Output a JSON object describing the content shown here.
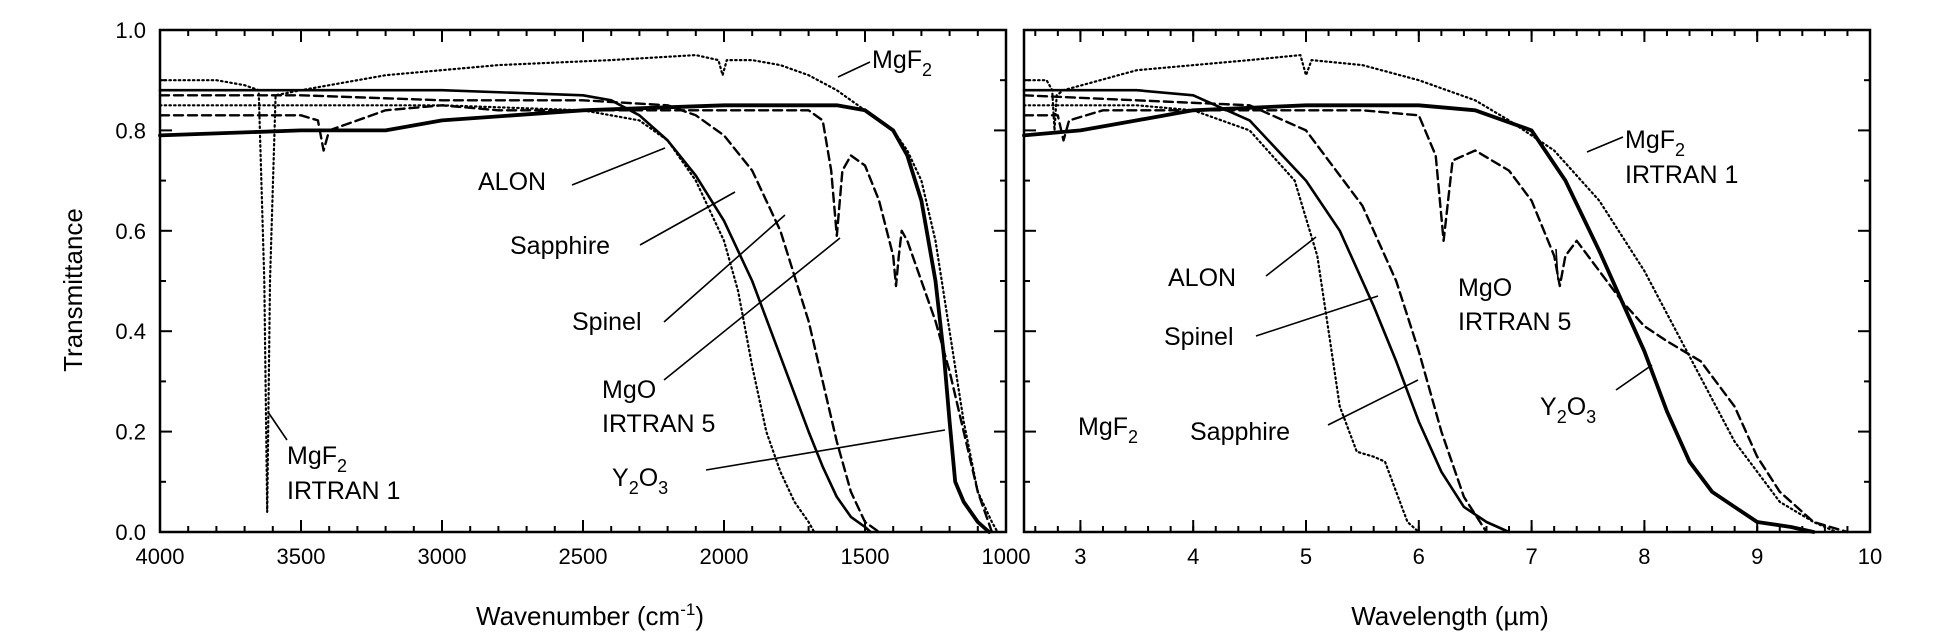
{
  "chart_data": [
    {
      "type": "line",
      "panel": "left",
      "xlabel": "Wavenumber (cm",
      "xlabel_superscript": "-1",
      "xlabel_suffix": ")",
      "ylabel": "Transmittance",
      "xlim": [
        4000,
        1000
      ],
      "ylim": [
        0.0,
        1.0
      ],
      "x_ticks": [
        "4000",
        "3500",
        "3000",
        "2500",
        "2000",
        "1500",
        "1000"
      ],
      "y_ticks": [
        "0.0",
        "0.2",
        "0.4",
        "0.6",
        "0.8",
        "1.0"
      ],
      "grid": false,
      "series": [
        {
          "id": "mgf2",
          "style": "dotted",
          "x": [
            4000,
            3800,
            3700,
            3650,
            3630,
            3620,
            3610,
            3590,
            3500,
            3200,
            2800,
            2400,
            2100,
            2020,
            2005,
            1990,
            1900,
            1800,
            1700,
            1600,
            1500,
            1450,
            1400,
            1350,
            1300,
            1250,
            1200,
            1150,
            1100,
            1050,
            1030
          ],
          "y": [
            0.9,
            0.9,
            0.89,
            0.88,
            0.5,
            0.04,
            0.5,
            0.87,
            0.88,
            0.91,
            0.93,
            0.94,
            0.95,
            0.94,
            0.91,
            0.94,
            0.94,
            0.93,
            0.91,
            0.88,
            0.84,
            0.82,
            0.8,
            0.76,
            0.7,
            0.58,
            0.4,
            0.22,
            0.08,
            0.02,
            0.0
          ]
        },
        {
          "id": "alon",
          "style": "dotted",
          "x": [
            4000,
            3600,
            3000,
            2500,
            2300,
            2200,
            2100,
            2000,
            1950,
            1900,
            1850,
            1800,
            1750,
            1700,
            1680
          ],
          "y": [
            0.85,
            0.85,
            0.85,
            0.84,
            0.82,
            0.78,
            0.7,
            0.58,
            0.48,
            0.33,
            0.2,
            0.12,
            0.06,
            0.02,
            0.0
          ]
        },
        {
          "id": "sapphire",
          "style": "solid",
          "x": [
            4000,
            3000,
            2500,
            2400,
            2300,
            2200,
            2100,
            2000,
            1900,
            1800,
            1700,
            1650,
            1600,
            1550,
            1500,
            1480
          ],
          "y": [
            0.88,
            0.88,
            0.87,
            0.86,
            0.83,
            0.78,
            0.71,
            0.62,
            0.5,
            0.35,
            0.2,
            0.13,
            0.07,
            0.03,
            0.01,
            0.0
          ]
        },
        {
          "id": "spinel",
          "style": "dashed",
          "x": [
            4000,
            3500,
            3000,
            2500,
            2200,
            2100,
            2000,
            1900,
            1800,
            1700,
            1650,
            1600,
            1550,
            1500,
            1450
          ],
          "y": [
            0.87,
            0.87,
            0.86,
            0.86,
            0.85,
            0.83,
            0.79,
            0.72,
            0.6,
            0.42,
            0.3,
            0.18,
            0.08,
            0.02,
            0.0
          ]
        },
        {
          "id": "mgo",
          "style": "dashed",
          "x": [
            4000,
            3500,
            3440,
            3420,
            3400,
            3300,
            3200,
            3000,
            2800,
            2500,
            2000,
            1800,
            1700,
            1650,
            1620,
            1600,
            1580,
            1550,
            1500,
            1450,
            1400,
            1390,
            1380,
            1370,
            1350,
            1300,
            1250,
            1200,
            1150,
            1100,
            1050
          ],
          "y": [
            0.83,
            0.83,
            0.82,
            0.76,
            0.8,
            0.82,
            0.84,
            0.85,
            0.84,
            0.84,
            0.84,
            0.84,
            0.84,
            0.82,
            0.72,
            0.59,
            0.72,
            0.75,
            0.73,
            0.66,
            0.55,
            0.49,
            0.55,
            0.6,
            0.58,
            0.5,
            0.42,
            0.32,
            0.2,
            0.08,
            0.0
          ]
        },
        {
          "id": "y2o3",
          "style": "solid-thick",
          "x": [
            4000,
            3500,
            3200,
            3000,
            2500,
            2000,
            1600,
            1500,
            1400,
            1350,
            1300,
            1250,
            1220,
            1200,
            1180,
            1150,
            1100,
            1060
          ],
          "y": [
            0.79,
            0.8,
            0.8,
            0.82,
            0.84,
            0.85,
            0.85,
            0.84,
            0.8,
            0.75,
            0.66,
            0.5,
            0.35,
            0.22,
            0.1,
            0.06,
            0.02,
            0.0
          ]
        }
      ],
      "annotations": [
        {
          "id": "mgf2-top",
          "text": "MgF",
          "sub": "2"
        },
        {
          "id": "alon",
          "text": "ALON"
        },
        {
          "id": "sapphire",
          "text": "Sapphire"
        },
        {
          "id": "spinel",
          "text": "Spinel"
        },
        {
          "id": "mgo",
          "text": "MgO",
          "line2": "IRTRAN 5"
        },
        {
          "id": "y2o3",
          "text": "Y",
          "sub": "2",
          "text2": "O",
          "sub2": "3"
        },
        {
          "id": "mgf2-bottom",
          "text": "MgF",
          "sub": "2",
          "line2": "IRTRAN 1"
        }
      ]
    },
    {
      "type": "line",
      "panel": "right",
      "xlabel": "Wavelength (µm)",
      "xlim": [
        2.5,
        10
      ],
      "ylim": [
        0.0,
        1.0
      ],
      "x_ticks": [
        "3",
        "4",
        "5",
        "6",
        "7",
        "8",
        "9",
        "10"
      ],
      "grid": false,
      "series": [
        {
          "id": "mgf2",
          "style": "dotted",
          "x": [
            2.5,
            2.7,
            2.75,
            2.77,
            2.79,
            2.85,
            3.5,
            4.5,
            4.95,
            5.0,
            5.05,
            5.5,
            6.0,
            6.5,
            6.8,
            7.2,
            7.6,
            8.0,
            8.4,
            8.8,
            9.2,
            9.5,
            9.7
          ],
          "y": [
            0.9,
            0.9,
            0.88,
            0.8,
            0.87,
            0.88,
            0.92,
            0.94,
            0.95,
            0.91,
            0.94,
            0.93,
            0.9,
            0.86,
            0.82,
            0.76,
            0.66,
            0.52,
            0.35,
            0.18,
            0.06,
            0.02,
            0.0
          ]
        },
        {
          "id": "alon",
          "style": "dotted",
          "x": [
            2.5,
            3.5,
            4.0,
            4.5,
            4.9,
            5.1,
            5.2,
            5.3,
            5.45,
            5.6,
            5.7,
            5.8,
            5.9,
            6.0
          ],
          "y": [
            0.85,
            0.85,
            0.84,
            0.8,
            0.7,
            0.55,
            0.4,
            0.25,
            0.16,
            0.15,
            0.14,
            0.08,
            0.02,
            0.0
          ]
        },
        {
          "id": "sapphire",
          "style": "solid",
          "x": [
            2.5,
            3.5,
            4.0,
            4.5,
            5.0,
            5.3,
            5.6,
            5.8,
            6.0,
            6.2,
            6.4,
            6.6,
            6.8
          ],
          "y": [
            0.88,
            0.88,
            0.87,
            0.82,
            0.7,
            0.6,
            0.45,
            0.34,
            0.22,
            0.12,
            0.05,
            0.02,
            0.0
          ]
        },
        {
          "id": "spinel",
          "style": "dashed",
          "x": [
            2.5,
            3.5,
            4.5,
            5.0,
            5.5,
            5.8,
            6.0,
            6.2,
            6.4,
            6.6
          ],
          "y": [
            0.87,
            0.86,
            0.85,
            0.8,
            0.65,
            0.5,
            0.36,
            0.2,
            0.07,
            0.0
          ]
        },
        {
          "id": "mgo",
          "style": "dashed",
          "x": [
            2.5,
            2.8,
            2.85,
            2.9,
            3.2,
            3.5,
            4.5,
            5.5,
            6.0,
            6.15,
            6.22,
            6.3,
            6.5,
            6.8,
            7.0,
            7.2,
            7.25,
            7.3,
            7.4,
            7.6,
            7.8,
            8.0,
            8.2,
            8.5,
            8.8,
            9.0,
            9.2,
            9.5,
            9.8
          ],
          "y": [
            0.83,
            0.83,
            0.78,
            0.82,
            0.84,
            0.84,
            0.84,
            0.84,
            0.83,
            0.75,
            0.58,
            0.74,
            0.76,
            0.72,
            0.66,
            0.55,
            0.49,
            0.55,
            0.58,
            0.52,
            0.46,
            0.41,
            0.38,
            0.34,
            0.25,
            0.15,
            0.08,
            0.02,
            0.0
          ]
        },
        {
          "id": "y2o3",
          "style": "solid-thick",
          "x": [
            2.5,
            3.0,
            3.5,
            4.0,
            5.0,
            6.0,
            6.5,
            7.0,
            7.3,
            7.6,
            7.8,
            8.0,
            8.2,
            8.4,
            8.6,
            8.8,
            9.0,
            9.3,
            9.5
          ],
          "y": [
            0.79,
            0.8,
            0.82,
            0.84,
            0.85,
            0.85,
            0.84,
            0.8,
            0.7,
            0.56,
            0.46,
            0.36,
            0.24,
            0.14,
            0.08,
            0.05,
            0.02,
            0.01,
            0.0
          ]
        }
      ],
      "annotations": [
        {
          "id": "mgf2-top",
          "text": "MgF",
          "sub": "2",
          "line2": "IRTRAN 1"
        },
        {
          "id": "alon",
          "text": "ALON"
        },
        {
          "id": "spinel",
          "text": "Spinel"
        },
        {
          "id": "mgo",
          "text": "MgO",
          "line2": "IRTRAN 5"
        },
        {
          "id": "sapphire",
          "text": "Sapphire"
        },
        {
          "id": "y2o3",
          "text": "Y",
          "sub": "2",
          "text2": "O",
          "sub2": "3"
        },
        {
          "id": "mgf2-bottom",
          "text": "MgF",
          "sub": "2"
        }
      ]
    }
  ]
}
